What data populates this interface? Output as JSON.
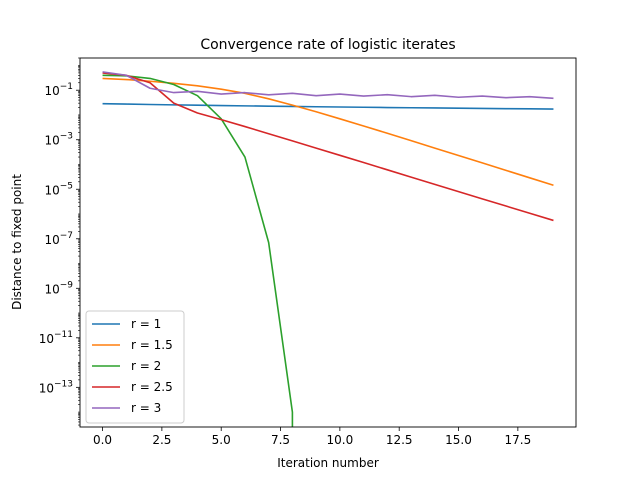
{
  "chart_data": {
    "type": "line",
    "title": "Convergence rate of logistic iterates",
    "xlabel": "Iteration number",
    "ylabel": "Distance to fixed point",
    "yscale": "log",
    "xlim": [
      -0.95,
      19.95
    ],
    "ylim": [
      2.5e-15,
      2.0
    ],
    "x_ticks": [
      0,
      2.5,
      5,
      7.5,
      10,
      12.5,
      15,
      17.5
    ],
    "x_tick_labels": [
      "0.0",
      "2.5",
      "5.0",
      "7.5",
      "10.0",
      "12.5",
      "15.0",
      "17.5"
    ],
    "y_ticks": [
      1e-13,
      1e-11,
      1e-09,
      1e-07,
      1e-05,
      0.001,
      0.1
    ],
    "y_tick_labels": [
      {
        "base": "10",
        "exp": "−13"
      },
      {
        "base": "10",
        "exp": "−11"
      },
      {
        "base": "10",
        "exp": "−9"
      },
      {
        "base": "10",
        "exp": "−7"
      },
      {
        "base": "10",
        "exp": "−5"
      },
      {
        "base": "10",
        "exp": "−3"
      },
      {
        "base": "10",
        "exp": "−1"
      }
    ],
    "grid": false,
    "legend_position": "lower left",
    "series": [
      {
        "name": "r = 1",
        "color": "#1f77b4",
        "x": [
          0,
          1,
          2,
          3,
          4,
          5,
          6,
          7,
          8,
          9,
          10,
          11,
          12,
          13,
          14,
          15,
          16,
          17,
          18,
          19
        ],
        "y": [
          0.0286,
          0.0275,
          0.0265,
          0.0256,
          0.0248,
          0.024,
          0.0233,
          0.0227,
          0.0221,
          0.0215,
          0.021,
          0.0205,
          0.02,
          0.0196,
          0.0192,
          0.0188,
          0.0184,
          0.018,
          0.0177,
          0.0174
        ]
      },
      {
        "name": "r = 1.5",
        "color": "#ff7f0e",
        "x": [
          0,
          1,
          2,
          3,
          4,
          5,
          6,
          7,
          8,
          9,
          10,
          11,
          12,
          13,
          14,
          15,
          16,
          17,
          18,
          19
        ],
        "y": [
          0.3,
          0.27,
          0.23,
          0.19,
          0.15,
          0.11,
          0.075,
          0.045,
          0.025,
          0.0135,
          0.007,
          0.0036,
          0.00183,
          0.00092,
          0.00046,
          0.00023,
          0.000116,
          5.8e-05,
          2.9e-05,
          1.45e-05
        ]
      },
      {
        "name": "r = 2",
        "color": "#2ca02c",
        "x": [
          0,
          1,
          2,
          3,
          4,
          5,
          6,
          7,
          8,
          8
        ],
        "y": [
          0.4,
          0.38,
          0.3,
          0.17,
          0.06,
          0.007,
          0.0002,
          7e-08,
          1e-14,
          2.5e-15
        ]
      },
      {
        "name": "r = 2.5",
        "color": "#d62728",
        "x": [
          0,
          1,
          2,
          3,
          4,
          5,
          6,
          7,
          8,
          9,
          10,
          11,
          12,
          13,
          14,
          15,
          16,
          17,
          18,
          19
        ],
        "y": [
          0.5,
          0.4,
          0.2,
          0.03,
          0.012,
          0.0065,
          0.0034,
          0.00175,
          0.0009,
          0.00046,
          0.000235,
          0.00012,
          6.1e-05,
          3.1e-05,
          1.57e-05,
          8e-06,
          4.1e-06,
          2.1e-06,
          1.07e-06,
          5.5e-07
        ]
      },
      {
        "name": "r = 3",
        "color": "#9467bd",
        "x": [
          0,
          1,
          2,
          3,
          4,
          5,
          6,
          7,
          8,
          9,
          10,
          11,
          12,
          13,
          14,
          15,
          16,
          17,
          18,
          19
        ],
        "y": [
          0.55,
          0.4,
          0.12,
          0.08,
          0.09,
          0.07,
          0.08,
          0.065,
          0.075,
          0.06,
          0.07,
          0.058,
          0.066,
          0.055,
          0.062,
          0.052,
          0.058,
          0.05,
          0.055,
          0.047
        ]
      }
    ]
  }
}
